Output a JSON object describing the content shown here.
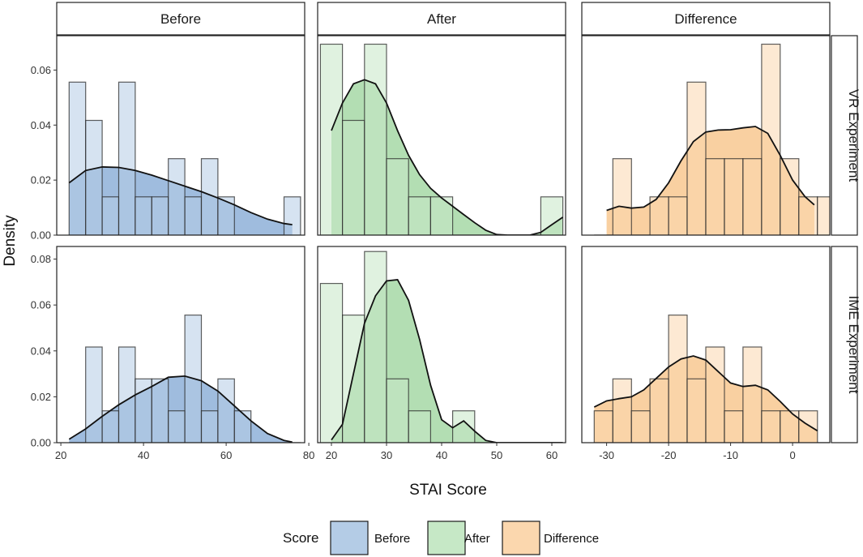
{
  "chart_data": {
    "type": "histogram-density-facets",
    "title": "",
    "xlabel": "STAI Score",
    "ylabel": "Density",
    "columns": [
      "Before",
      "After",
      "Difference"
    ],
    "rows": [
      "VR Experiment",
      "IME Experiment"
    ],
    "y_ticks": {
      "VR Experiment": [
        "0.00",
        "0.02",
        "0.04",
        "0.06"
      ],
      "IME Experiment": [
        "0.00",
        "0.02",
        "0.04",
        "0.06",
        "0.08"
      ]
    },
    "x_ticks": {
      "Before": [
        "20",
        "40",
        "60",
        "80"
      ],
      "After": [
        "20",
        "30",
        "40",
        "50",
        "60"
      ],
      "Difference": [
        "-30",
        "-20",
        "-10",
        "0"
      ]
    },
    "legend": {
      "title": "Score",
      "placement": "bottom",
      "entries": [
        {
          "label": "Before",
          "fill": "#b4cce6",
          "stroke": "#1a1a1a"
        },
        {
          "label": "After",
          "fill": "#c6e8c6",
          "stroke": "#1a1a1a"
        },
        {
          "label": "Difference",
          "fill": "#fbd7ae",
          "stroke": "#1a1a1a"
        }
      ]
    },
    "colors": {
      "Before": {
        "fill": "#b4cce6",
        "density": "#8eb0d8"
      },
      "After": {
        "fill": "#c6e8c6",
        "density": "#a6d8a6"
      },
      "Difference": {
        "fill": "#fbd7ae",
        "density": "#f8c890"
      }
    },
    "panels": [
      {
        "column": "Before",
        "row": "VR Experiment",
        "xlim": [
          19,
          79
        ],
        "ylim": [
          0,
          0.0725
        ],
        "bin_starts": [
          22,
          26,
          30,
          34,
          38,
          42,
          46,
          50,
          54,
          58,
          62,
          66,
          70,
          74
        ],
        "bin_width": 4,
        "density": [
          0.0556,
          0.0417,
          0.0139,
          0.0556,
          0.0139,
          0.0139,
          0.0278,
          0.0139,
          0.0278,
          0.0139,
          0,
          0,
          0,
          0.0139
        ],
        "curve": [
          [
            22,
            0.019
          ],
          [
            26,
            0.0235
          ],
          [
            30,
            0.0248
          ],
          [
            34,
            0.0246
          ],
          [
            38,
            0.0235
          ],
          [
            42,
            0.0218
          ],
          [
            46,
            0.0198
          ],
          [
            50,
            0.0178
          ],
          [
            54,
            0.0158
          ],
          [
            58,
            0.0135
          ],
          [
            62,
            0.011
          ],
          [
            66,
            0.0082
          ],
          [
            70,
            0.0058
          ],
          [
            74,
            0.0042
          ],
          [
            76,
            0.0038
          ]
        ]
      },
      {
        "column": "After",
        "row": "VR Experiment",
        "xlim": [
          17.5,
          62.5
        ],
        "ylim": [
          0,
          0.0725
        ],
        "bin_starts": [
          18,
          22,
          26,
          30,
          34,
          38,
          42,
          46,
          50,
          54,
          58
        ],
        "bin_width": 4,
        "density": [
          0.0694,
          0.0417,
          0.0694,
          0.0278,
          0.0139,
          0.0139,
          0,
          0,
          0,
          0,
          0.0139
        ],
        "curve": [
          [
            20,
            0.038
          ],
          [
            22,
            0.048
          ],
          [
            24,
            0.055
          ],
          [
            26,
            0.0565
          ],
          [
            28,
            0.055
          ],
          [
            30,
            0.048
          ],
          [
            32,
            0.038
          ],
          [
            34,
            0.029
          ],
          [
            36,
            0.022
          ],
          [
            38,
            0.017
          ],
          [
            40,
            0.0135
          ],
          [
            42,
            0.0105
          ],
          [
            44,
            0.0075
          ],
          [
            46,
            0.0045
          ],
          [
            48,
            0.0018
          ],
          [
            50,
            0.0002
          ],
          [
            52,
            0
          ],
          [
            54,
            0
          ],
          [
            56,
            0
          ],
          [
            58,
            0.001
          ],
          [
            60,
            0.0038
          ],
          [
            62,
            0.0065
          ]
        ]
      },
      {
        "column": "Difference",
        "row": "VR Experiment",
        "xlim": [
          -34,
          6
        ],
        "ylim": [
          0,
          0.0725
        ],
        "bin_starts": [
          -32,
          -29,
          -26,
          -23,
          -20,
          -17,
          -14,
          -11,
          -8,
          -5,
          -2,
          1,
          4
        ],
        "bin_width": 3,
        "density": [
          0,
          0.0278,
          0,
          0.0139,
          0.0139,
          0.0556,
          0.0278,
          0.0278,
          0.0278,
          0.0694,
          0.0278,
          0.0139,
          0.0139
        ],
        "curve": [
          [
            -30,
            0.009
          ],
          [
            -28,
            0.0105
          ],
          [
            -26,
            0.0098
          ],
          [
            -24,
            0.0102
          ],
          [
            -22,
            0.013
          ],
          [
            -20,
            0.019
          ],
          [
            -18,
            0.027
          ],
          [
            -16,
            0.034
          ],
          [
            -14,
            0.0375
          ],
          [
            -12,
            0.0382
          ],
          [
            -10,
            0.0383
          ],
          [
            -8,
            0.039
          ],
          [
            -6,
            0.0395
          ],
          [
            -4,
            0.037
          ],
          [
            -2,
            0.029
          ],
          [
            0,
            0.02
          ],
          [
            2,
            0.014
          ],
          [
            3.5,
            0.011
          ]
        ]
      },
      {
        "column": "Before",
        "row": "IME Experiment",
        "xlim": [
          19,
          79
        ],
        "ylim": [
          0,
          0.0855
        ],
        "bin_starts": [
          22,
          26,
          30,
          34,
          38,
          42,
          46,
          50,
          54,
          58,
          62,
          66,
          70,
          74
        ],
        "bin_width": 4,
        "density": [
          0,
          0.0417,
          0.0139,
          0.0417,
          0.0278,
          0.0278,
          0.0139,
          0.0556,
          0.0139,
          0.0278,
          0.0139,
          0,
          0,
          0
        ],
        "curve": [
          [
            22,
            0.0015
          ],
          [
            26,
            0.006
          ],
          [
            30,
            0.0115
          ],
          [
            34,
            0.0165
          ],
          [
            38,
            0.0208
          ],
          [
            42,
            0.0245
          ],
          [
            46,
            0.0285
          ],
          [
            50,
            0.029
          ],
          [
            54,
            0.027
          ],
          [
            58,
            0.0225
          ],
          [
            62,
            0.016
          ],
          [
            66,
            0.0095
          ],
          [
            70,
            0.004
          ],
          [
            74,
            0.001
          ],
          [
            76,
            0.0003
          ]
        ]
      },
      {
        "column": "After",
        "row": "IME Experiment",
        "xlim": [
          17.5,
          62.5
        ],
        "ylim": [
          0,
          0.0855
        ],
        "bin_starts": [
          18,
          22,
          26,
          30,
          34,
          38,
          42,
          46,
          50,
          54,
          58
        ],
        "bin_width": 4,
        "density": [
          0.0694,
          0.0556,
          0.0833,
          0.0278,
          0.0139,
          0,
          0.0139,
          0,
          0,
          0,
          0
        ],
        "curve": [
          [
            20,
            0.0012
          ],
          [
            22,
            0.008
          ],
          [
            24,
            0.03
          ],
          [
            26,
            0.052
          ],
          [
            28,
            0.064
          ],
          [
            30,
            0.0705
          ],
          [
            32,
            0.071
          ],
          [
            34,
            0.062
          ],
          [
            36,
            0.045
          ],
          [
            38,
            0.025
          ],
          [
            40,
            0.01
          ],
          [
            42,
            0.0065
          ],
          [
            44,
            0.0095
          ],
          [
            46,
            0.005
          ],
          [
            48,
            0.001
          ],
          [
            50,
            0
          ],
          [
            54,
            0
          ],
          [
            58,
            0
          ],
          [
            62,
            0
          ]
        ]
      },
      {
        "column": "Difference",
        "row": "IME Experiment",
        "xlim": [
          -34,
          6
        ],
        "ylim": [
          0,
          0.0855
        ],
        "bin_starts": [
          -32,
          -29,
          -26,
          -23,
          -20,
          -17,
          -14,
          -11,
          -8,
          -5,
          -2,
          1,
          4
        ],
        "bin_width": 3,
        "density": [
          0.0139,
          0.0278,
          0.0139,
          0.0278,
          0.0556,
          0.0278,
          0.0417,
          0.0139,
          0.0417,
          0.0139,
          0.0139,
          0.0139,
          0
        ],
        "curve": [
          [
            -32,
            0.0155
          ],
          [
            -30,
            0.0182
          ],
          [
            -28,
            0.0192
          ],
          [
            -26,
            0.02
          ],
          [
            -24,
            0.023
          ],
          [
            -22,
            0.028
          ],
          [
            -20,
            0.033
          ],
          [
            -18,
            0.0365
          ],
          [
            -16,
            0.0378
          ],
          [
            -14,
            0.036
          ],
          [
            -12,
            0.031
          ],
          [
            -10,
            0.026
          ],
          [
            -8,
            0.0245
          ],
          [
            -6,
            0.025
          ],
          [
            -4,
            0.023
          ],
          [
            -2,
            0.018
          ],
          [
            0,
            0.0125
          ],
          [
            2,
            0.0085
          ],
          [
            4,
            0.0052
          ]
        ]
      }
    ]
  }
}
